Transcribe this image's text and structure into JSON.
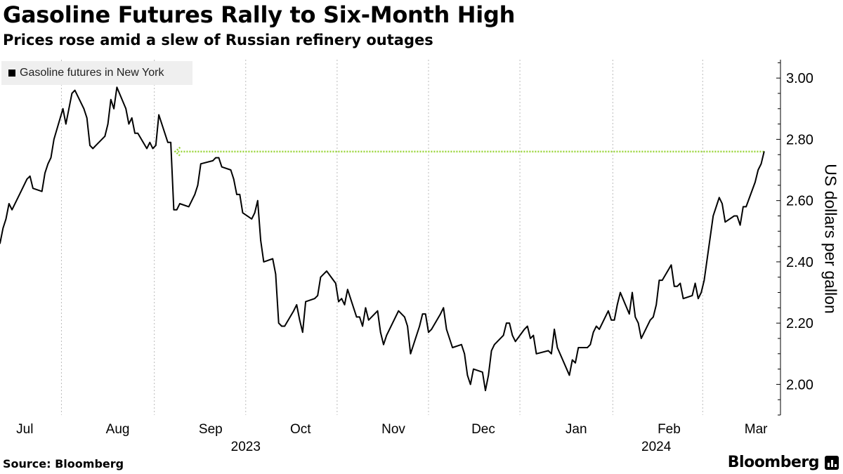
{
  "header": {
    "title": "Gasoline Futures Rally to Six-Month High",
    "subtitle": "Prices rose amid a slew of Russian refinery outages"
  },
  "footer": {
    "source": "Source: Bloomberg",
    "brand": "Bloomberg"
  },
  "colors": {
    "line": "#000000",
    "reference_line": "#9ad53b",
    "gridline": "#bbbbbb",
    "legend_bg": "#efefef"
  },
  "chart_data": {
    "type": "line",
    "title": "Gasoline Futures Rally to Six-Month High",
    "subtitle": "Prices rose amid a slew of Russian refinery outages",
    "ylabel": "US dollars per gallon",
    "xlabel": "",
    "ylim": [
      1.9,
      3.06
    ],
    "yticks": [
      "2.00",
      "2.20",
      "2.40",
      "2.60",
      "2.80",
      "3.00"
    ],
    "y_axis_position": "right",
    "xlim": [
      "2023-06-26",
      "2024-03-08"
    ],
    "xtick_labels": [
      {
        "label": "Jul",
        "date": "2023-07-01"
      },
      {
        "label": "Aug",
        "date": "2023-08-01"
      },
      {
        "label": "Sep",
        "date": "2023-09-01"
      },
      {
        "label": "Oct",
        "date": "2023-10-01"
      },
      {
        "label": "Nov",
        "date": "2023-11-01"
      },
      {
        "label": "Dec",
        "date": "2023-12-01"
      },
      {
        "label": "Jan",
        "date": "2024-01-01"
      },
      {
        "label": "Feb",
        "date": "2024-02-01"
      },
      {
        "label": "Mar",
        "date": "2024-03-01"
      }
    ],
    "year_labels": [
      {
        "label": "2023",
        "date": "2023-09-16"
      },
      {
        "label": "2024",
        "date": "2024-01-31"
      }
    ],
    "grid_vertical": true,
    "legend": {
      "placement": "top-left",
      "entries": [
        "Gasoline futures in New York"
      ]
    },
    "reference_line": {
      "value": 2.76,
      "from": "2023-08-23",
      "to": "2024-03-07",
      "style": "dotted"
    },
    "series": [
      {
        "name": "Gasoline futures in New York",
        "points": [
          [
            "2023-06-26",
            2.46
          ],
          [
            "2023-06-27",
            2.51
          ],
          [
            "2023-06-28",
            2.54
          ],
          [
            "2023-06-29",
            2.59
          ],
          [
            "2023-06-30",
            2.57
          ],
          [
            "2023-07-03",
            2.63
          ],
          [
            "2023-07-05",
            2.67
          ],
          [
            "2023-07-06",
            2.68
          ],
          [
            "2023-07-07",
            2.64
          ],
          [
            "2023-07-10",
            2.63
          ],
          [
            "2023-07-11",
            2.69
          ],
          [
            "2023-07-12",
            2.72
          ],
          [
            "2023-07-13",
            2.74
          ],
          [
            "2023-07-14",
            2.8
          ],
          [
            "2023-07-17",
            2.9
          ],
          [
            "2023-07-18",
            2.85
          ],
          [
            "2023-07-19",
            2.9
          ],
          [
            "2023-07-20",
            2.95
          ],
          [
            "2023-07-21",
            2.96
          ],
          [
            "2023-07-24",
            2.9
          ],
          [
            "2023-07-25",
            2.87
          ],
          [
            "2023-07-26",
            2.78
          ],
          [
            "2023-07-27",
            2.77
          ],
          [
            "2023-07-28",
            2.78
          ],
          [
            "2023-07-31",
            2.81
          ],
          [
            "2023-08-01",
            2.85
          ],
          [
            "2023-08-02",
            2.93
          ],
          [
            "2023-08-03",
            2.9
          ],
          [
            "2023-08-04",
            2.97
          ],
          [
            "2023-08-07",
            2.9
          ],
          [
            "2023-08-08",
            2.85
          ],
          [
            "2023-08-09",
            2.87
          ],
          [
            "2023-08-10",
            2.82
          ],
          [
            "2023-08-11",
            2.82
          ],
          [
            "2023-08-14",
            2.77
          ],
          [
            "2023-08-15",
            2.79
          ],
          [
            "2023-08-16",
            2.77
          ],
          [
            "2023-08-17",
            2.78
          ],
          [
            "2023-08-18",
            2.88
          ],
          [
            "2023-08-21",
            2.79
          ],
          [
            "2023-08-22",
            2.79
          ],
          [
            "2023-08-23",
            2.57
          ],
          [
            "2023-08-24",
            2.57
          ],
          [
            "2023-08-25",
            2.59
          ],
          [
            "2023-08-28",
            2.58
          ],
          [
            "2023-08-29",
            2.6
          ],
          [
            "2023-08-30",
            2.62
          ],
          [
            "2023-08-31",
            2.65
          ],
          [
            "2023-09-01",
            2.72
          ],
          [
            "2023-09-05",
            2.73
          ],
          [
            "2023-09-06",
            2.74
          ],
          [
            "2023-09-07",
            2.74
          ],
          [
            "2023-09-08",
            2.71
          ],
          [
            "2023-09-11",
            2.7
          ],
          [
            "2023-09-12",
            2.67
          ],
          [
            "2023-09-13",
            2.62
          ],
          [
            "2023-09-14",
            2.62
          ],
          [
            "2023-09-15",
            2.56
          ],
          [
            "2023-09-18",
            2.54
          ],
          [
            "2023-09-19",
            2.56
          ],
          [
            "2023-09-20",
            2.6
          ],
          [
            "2023-09-21",
            2.47
          ],
          [
            "2023-09-22",
            2.4
          ],
          [
            "2023-09-25",
            2.41
          ],
          [
            "2023-09-26",
            2.36
          ],
          [
            "2023-09-27",
            2.2
          ],
          [
            "2023-09-28",
            2.19
          ],
          [
            "2023-09-29",
            2.19
          ],
          [
            "2023-10-02",
            2.24
          ],
          [
            "2023-10-03",
            2.26
          ],
          [
            "2023-10-04",
            2.21
          ],
          [
            "2023-10-05",
            2.17
          ],
          [
            "2023-10-06",
            2.27
          ],
          [
            "2023-10-09",
            2.28
          ],
          [
            "2023-10-10",
            2.29
          ],
          [
            "2023-10-11",
            2.35
          ],
          [
            "2023-10-12",
            2.36
          ],
          [
            "2023-10-13",
            2.37
          ],
          [
            "2023-10-16",
            2.33
          ],
          [
            "2023-10-17",
            2.27
          ],
          [
            "2023-10-18",
            2.28
          ],
          [
            "2023-10-19",
            2.26
          ],
          [
            "2023-10-20",
            2.31
          ],
          [
            "2023-10-23",
            2.22
          ],
          [
            "2023-10-24",
            2.22
          ],
          [
            "2023-10-25",
            2.19
          ],
          [
            "2023-10-26",
            2.25
          ],
          [
            "2023-10-27",
            2.21
          ],
          [
            "2023-10-30",
            2.24
          ],
          [
            "2023-10-31",
            2.17
          ],
          [
            "2023-11-01",
            2.13
          ],
          [
            "2023-11-02",
            2.16
          ],
          [
            "2023-11-03",
            2.18
          ],
          [
            "2023-11-06",
            2.24
          ],
          [
            "2023-11-07",
            2.23
          ],
          [
            "2023-11-08",
            2.22
          ],
          [
            "2023-11-09",
            2.19
          ],
          [
            "2023-11-10",
            2.1
          ],
          [
            "2023-11-13",
            2.19
          ],
          [
            "2023-11-14",
            2.23
          ],
          [
            "2023-11-15",
            2.23
          ],
          [
            "2023-11-16",
            2.17
          ],
          [
            "2023-11-17",
            2.18
          ],
          [
            "2023-11-20",
            2.23
          ],
          [
            "2023-11-21",
            2.25
          ],
          [
            "2023-11-22",
            2.18
          ],
          [
            "2023-11-24",
            2.12
          ],
          [
            "2023-11-27",
            2.13
          ],
          [
            "2023-11-28",
            2.1
          ],
          [
            "2023-11-29",
            2.03
          ],
          [
            "2023-11-30",
            2.0
          ],
          [
            "2023-12-01",
            2.05
          ],
          [
            "2023-12-04",
            2.04
          ],
          [
            "2023-12-05",
            1.98
          ],
          [
            "2023-12-06",
            2.03
          ],
          [
            "2023-12-07",
            2.11
          ],
          [
            "2023-12-08",
            2.13
          ],
          [
            "2023-12-11",
            2.16
          ],
          [
            "2023-12-12",
            2.2
          ],
          [
            "2023-12-13",
            2.2
          ],
          [
            "2023-12-14",
            2.16
          ],
          [
            "2023-12-15",
            2.14
          ],
          [
            "2023-12-18",
            2.18
          ],
          [
            "2023-12-19",
            2.19
          ],
          [
            "2023-12-20",
            2.15
          ],
          [
            "2023-12-21",
            2.16
          ],
          [
            "2023-12-22",
            2.1
          ],
          [
            "2023-12-26",
            2.11
          ],
          [
            "2023-12-27",
            2.1
          ],
          [
            "2023-12-28",
            2.18
          ],
          [
            "2023-12-29",
            2.12
          ],
          [
            "2024-01-02",
            2.03
          ],
          [
            "2024-01-03",
            2.08
          ],
          [
            "2024-01-04",
            2.07
          ],
          [
            "2024-01-05",
            2.12
          ],
          [
            "2024-01-08",
            2.12
          ],
          [
            "2024-01-09",
            2.13
          ],
          [
            "2024-01-10",
            2.17
          ],
          [
            "2024-01-11",
            2.19
          ],
          [
            "2024-01-12",
            2.18
          ],
          [
            "2024-01-15",
            2.24
          ],
          [
            "2024-01-16",
            2.21
          ],
          [
            "2024-01-17",
            2.21
          ],
          [
            "2024-01-18",
            2.26
          ],
          [
            "2024-01-19",
            2.3
          ],
          [
            "2024-01-22",
            2.23
          ],
          [
            "2024-01-23",
            2.3
          ],
          [
            "2024-01-24",
            2.22
          ],
          [
            "2024-01-25",
            2.2
          ],
          [
            "2024-01-26",
            2.15
          ],
          [
            "2024-01-29",
            2.21
          ],
          [
            "2024-01-30",
            2.22
          ],
          [
            "2024-01-31",
            2.26
          ],
          [
            "2024-02-01",
            2.34
          ],
          [
            "2024-02-02",
            2.34
          ],
          [
            "2024-02-05",
            2.39
          ],
          [
            "2024-02-06",
            2.32
          ],
          [
            "2024-02-07",
            2.32
          ],
          [
            "2024-02-08",
            2.33
          ],
          [
            "2024-02-09",
            2.28
          ],
          [
            "2024-02-12",
            2.29
          ],
          [
            "2024-02-13",
            2.33
          ],
          [
            "2024-02-14",
            2.28
          ],
          [
            "2024-02-15",
            2.3
          ],
          [
            "2024-02-16",
            2.34
          ],
          [
            "2024-02-19",
            2.55
          ],
          [
            "2024-02-20",
            2.58
          ],
          [
            "2024-02-21",
            2.61
          ],
          [
            "2024-02-22",
            2.59
          ],
          [
            "2024-02-23",
            2.53
          ],
          [
            "2024-02-26",
            2.55
          ],
          [
            "2024-02-27",
            2.55
          ],
          [
            "2024-02-28",
            2.52
          ],
          [
            "2024-02-29",
            2.58
          ],
          [
            "2024-03-01",
            2.58
          ],
          [
            "2024-03-04",
            2.66
          ],
          [
            "2024-03-05",
            2.7
          ],
          [
            "2024-03-06",
            2.72
          ],
          [
            "2024-03-07",
            2.76
          ]
        ]
      }
    ]
  }
}
